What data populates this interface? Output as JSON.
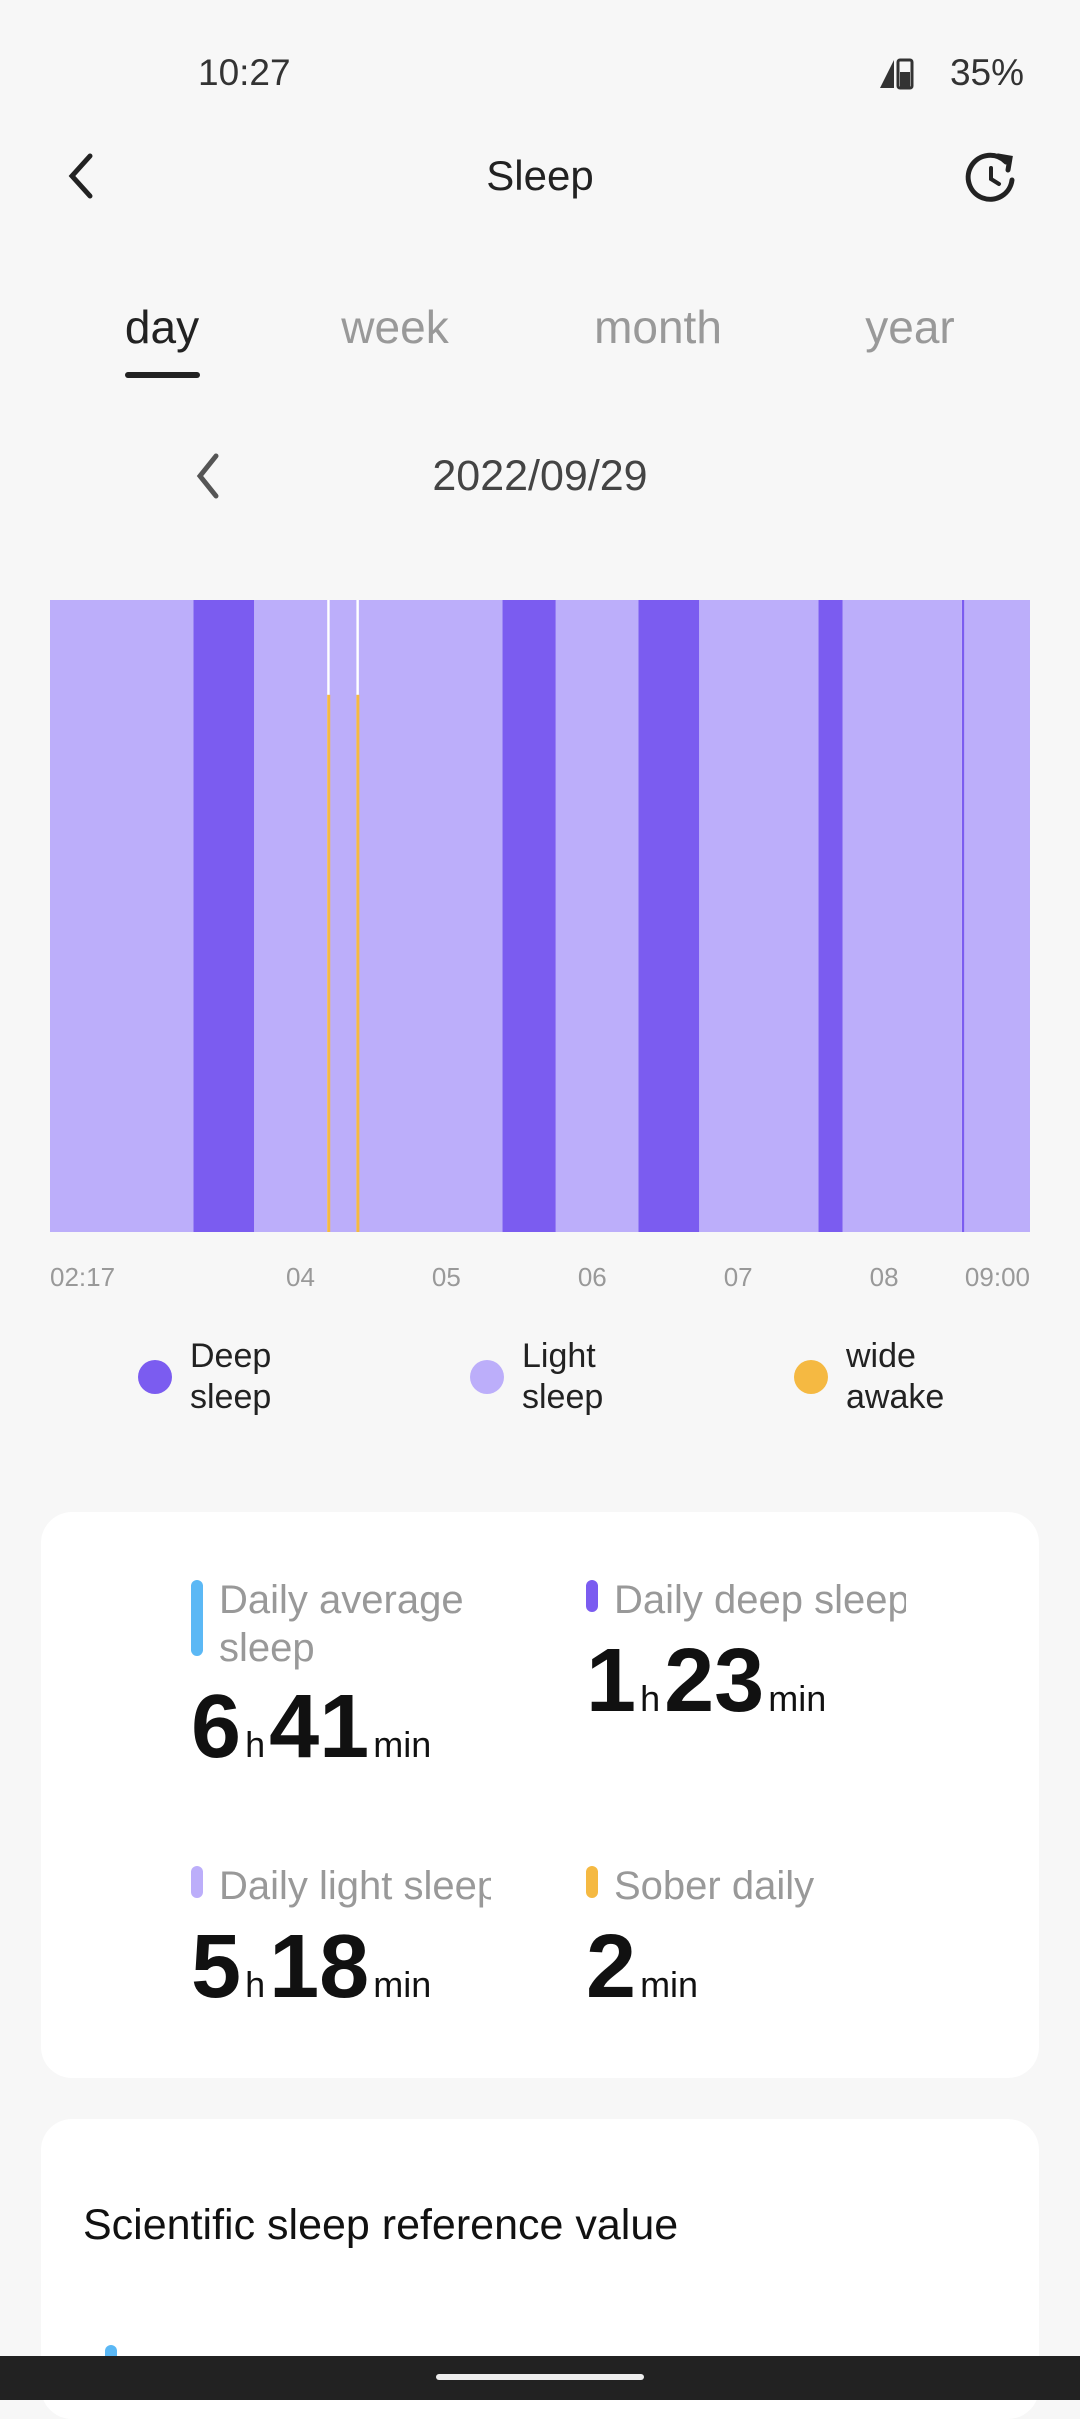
{
  "status_bar": {
    "time": "10:27",
    "battery": "35%"
  },
  "header": {
    "title": "Sleep"
  },
  "tabs": [
    "day",
    "week",
    "month",
    "year"
  ],
  "date": "2022/09/29",
  "chart_data": {
    "type": "timeline",
    "xlim": [
      137,
      540
    ],
    "xticks": [
      {
        "value": 137,
        "label": "02:17"
      },
      {
        "value": 240,
        "label": "04"
      },
      {
        "value": 300,
        "label": "05"
      },
      {
        "value": 360,
        "label": "06"
      },
      {
        "value": 420,
        "label": "07"
      },
      {
        "value": 480,
        "label": "08"
      },
      {
        "value": 540,
        "label": "09:00"
      }
    ],
    "series": [
      {
        "name": "Deep sleep",
        "color": "#7b5cf0",
        "segments": [
          [
            196,
            221
          ],
          [
            323,
            345
          ],
          [
            379,
            404
          ],
          [
            453,
            463
          ],
          [
            512,
            513
          ]
        ]
      },
      {
        "name": "Light sleep",
        "color": "#bcaefa",
        "segments": [
          [
            137,
            196
          ],
          [
            221,
            251
          ],
          [
            252,
            263
          ],
          [
            264,
            323
          ],
          [
            345,
            379
          ],
          [
            404,
            453
          ],
          [
            463,
            512
          ],
          [
            513,
            540
          ]
        ]
      },
      {
        "name": "wide awake",
        "color": "#f5b942",
        "segments": [
          [
            251,
            252
          ],
          [
            263,
            264
          ]
        ]
      }
    ]
  },
  "stats": [
    {
      "label": "Daily average sleep",
      "color": "#5bb8f5",
      "hours": 6,
      "hours_unit": "h",
      "minutes": 41,
      "minutes_unit": "min"
    },
    {
      "label": "Daily deep sleep",
      "color": "#7b5cf0",
      "hours": 1,
      "hours_unit": "h",
      "minutes": 23,
      "minutes_unit": "min"
    },
    {
      "label": "Daily light sleep",
      "color": "#bcaefa",
      "hours": 5,
      "hours_unit": "h",
      "minutes": 18,
      "minutes_unit": "min"
    },
    {
      "label": "Sober daily",
      "color": "#f5b942",
      "minutes": 2,
      "minutes_unit": "min"
    }
  ],
  "reference": {
    "title": "Scientific sleep reference value"
  }
}
